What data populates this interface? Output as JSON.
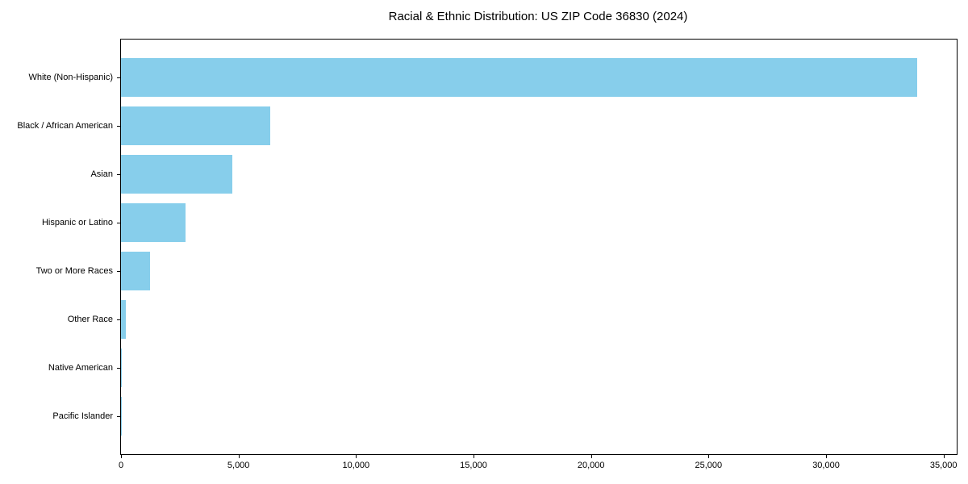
{
  "figure": {
    "background": "#ffffff",
    "frame_color": "#000000",
    "text_color": "#000000"
  },
  "chart_data": {
    "type": "bar",
    "orientation": "horizontal",
    "title": "Racial & Ethnic Distribution: US ZIP Code 36830 (2024)",
    "xlabel": "",
    "ylabel": "",
    "grid": false,
    "legend": "none",
    "bar_color": "#87CEEB",
    "categories": [
      "White (Non-Hispanic)",
      "Black / African American",
      "Asian",
      "Hispanic or Latino",
      "Two or More Races",
      "Other Race",
      "Native American",
      "Pacific Islander"
    ],
    "values": [
      33870,
      6350,
      4740,
      2750,
      1240,
      210,
      30,
      12
    ],
    "xlim": [
      0,
      35560
    ],
    "xticks": {
      "values": [
        0,
        5000,
        10000,
        15000,
        20000,
        25000,
        30000,
        35000
      ],
      "labels": [
        "0",
        "5,000",
        "10,000",
        "15,000",
        "20,000",
        "25,000",
        "30,000",
        "35,000"
      ]
    }
  }
}
